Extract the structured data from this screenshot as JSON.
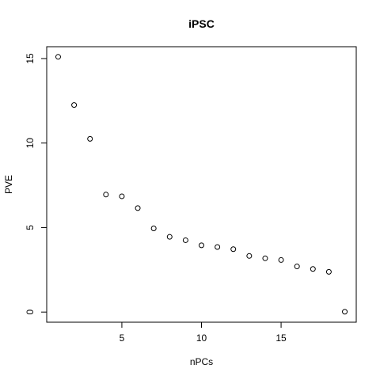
{
  "chart_data": {
    "type": "scatter",
    "title": "iPSC",
    "xlabel": "nPCs",
    "ylabel": "PVE",
    "x": [
      1,
      2,
      3,
      4,
      5,
      6,
      7,
      8,
      9,
      10,
      11,
      12,
      13,
      14,
      15,
      16,
      17,
      18,
      19
    ],
    "y": [
      15.1,
      12.25,
      10.25,
      6.95,
      6.85,
      6.15,
      4.95,
      4.45,
      4.25,
      3.95,
      3.85,
      3.72,
      3.32,
      3.18,
      3.08,
      2.7,
      2.55,
      2.38,
      0.02
    ],
    "xlim": [
      0.28,
      19.72
    ],
    "ylim": [
      -0.6,
      15.7
    ],
    "xticks": [
      5,
      10,
      15
    ],
    "yticks": [
      0,
      5,
      10,
      15
    ],
    "xtick_labels": [
      "5",
      "10",
      "15"
    ],
    "ytick_labels": [
      "0",
      "5",
      "10",
      "15"
    ],
    "grid": false,
    "marker": "open-circle"
  }
}
